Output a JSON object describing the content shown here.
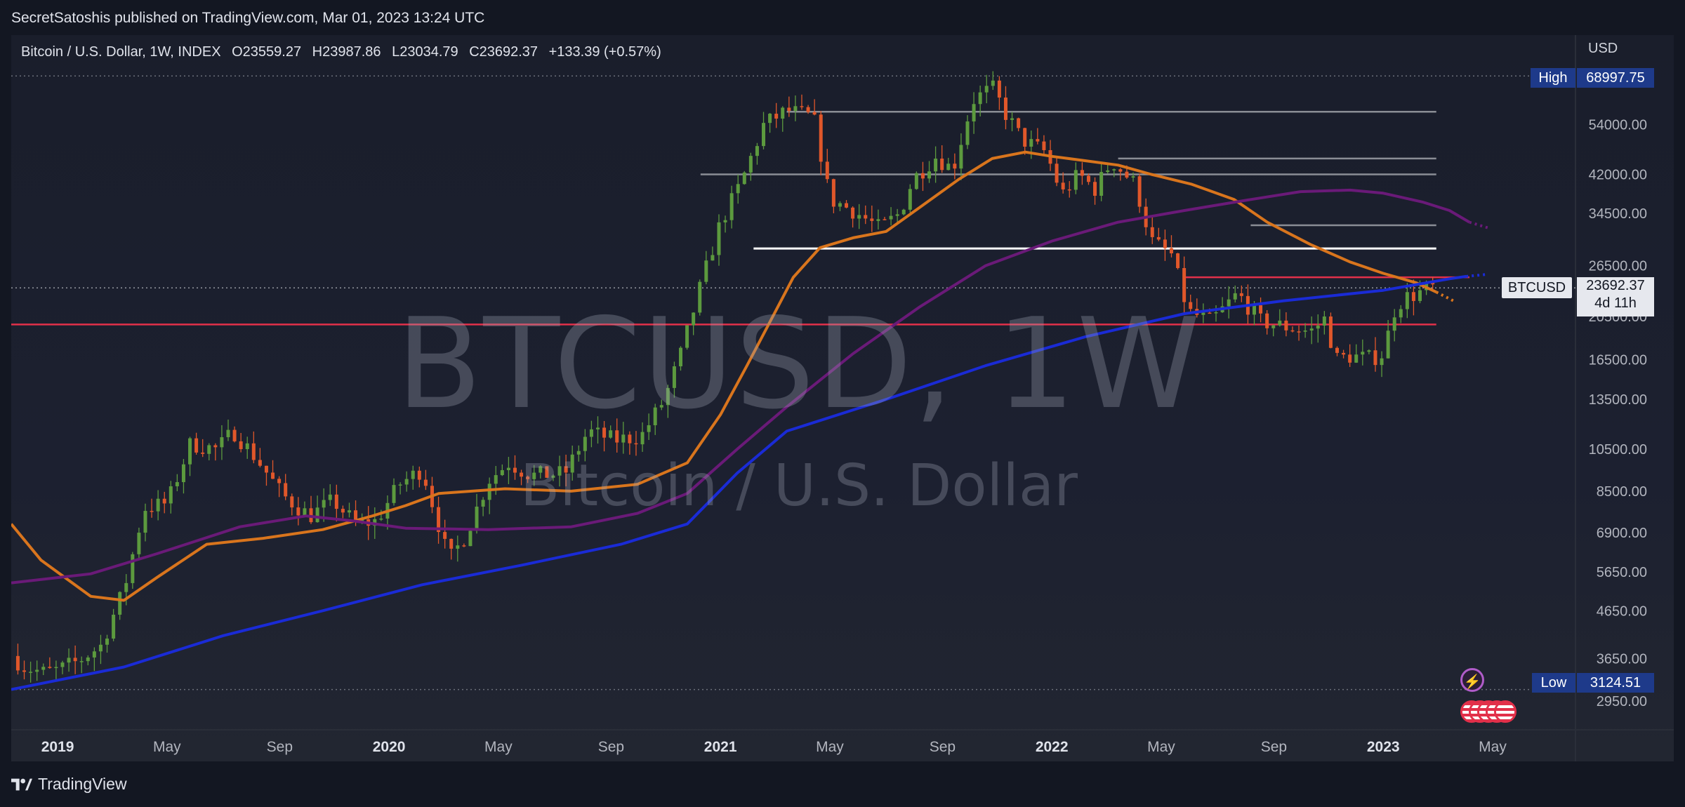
{
  "publish_line": "SecretSatoshis published on TradingView.com, Mar 01, 2023 13:24 UTC",
  "legend": {
    "symbol": "Bitcoin / U.S. Dollar, 1W, INDEX",
    "open": "O23559.27",
    "high": "H23987.86",
    "low": "L23034.79",
    "close": "C23692.37",
    "change": "+133.39 (+0.57%)"
  },
  "watermark": {
    "title": "BTCUSD, 1W",
    "subtitle": "Bitcoin / U.S. Dollar"
  },
  "currency": "USD",
  "high_marker": {
    "label": "High",
    "value": "68997.75"
  },
  "low_marker": {
    "label": "Low",
    "value": "3124.51"
  },
  "last_price": {
    "symbol": "BTCUSD",
    "value": "23692.37",
    "countdown": "4d 11h"
  },
  "footer": {
    "brand": "TradingView"
  },
  "icons": {
    "events": "lightning-icon",
    "economic": "us-flag-icon",
    "logo": "tradingview-logo-icon"
  },
  "colors": {
    "background": "#131722",
    "up": "#5c9a3e",
    "down": "#e0572a",
    "ma_orange": "#d9751d",
    "ma_purple": "#6a1a78",
    "ma_blue": "#1a2bd6",
    "level_white": "#ffffff",
    "level_gray": "#8a8d95",
    "level_red": "#e2304a"
  },
  "chart_data": {
    "type": "line",
    "scale": "log",
    "ylim": [
      2550,
      79000
    ],
    "y_ticks": [
      "54000.00",
      "42000.00",
      "34500.00",
      "26500.00",
      "20500.00",
      "16500.00",
      "13500.00",
      "10500.00",
      "8500.00",
      "6900.00",
      "5650.00",
      "4650.00",
      "3650.00",
      "2950.00"
    ],
    "x_ticks": [
      {
        "label": "2019",
        "t": 0.0,
        "bold": true
      },
      {
        "label": "May",
        "t": 0.33,
        "bold": false
      },
      {
        "label": "Sep",
        "t": 0.67,
        "bold": false
      },
      {
        "label": "2020",
        "t": 1.0,
        "bold": true
      },
      {
        "label": "May",
        "t": 1.33,
        "bold": false
      },
      {
        "label": "Sep",
        "t": 1.67,
        "bold": false
      },
      {
        "label": "2021",
        "t": 2.0,
        "bold": true
      },
      {
        "label": "May",
        "t": 2.33,
        "bold": false
      },
      {
        "label": "Sep",
        "t": 2.67,
        "bold": false
      },
      {
        "label": "2022",
        "t": 3.0,
        "bold": true
      },
      {
        "label": "May",
        "t": 3.33,
        "bold": false
      },
      {
        "label": "Sep",
        "t": 3.67,
        "bold": false
      },
      {
        "label": "2023",
        "t": 4.0,
        "bold": true
      },
      {
        "label": "May",
        "t": 4.33,
        "bold": false
      }
    ],
    "x_range_years": [
      -0.14,
      4.58
    ],
    "price_path": [
      [
        -0.12,
        3700
      ],
      [
        -0.08,
        3500
      ],
      [
        -0.02,
        3400
      ],
      [
        0.02,
        3450
      ],
      [
        0.08,
        3600
      ],
      [
        0.15,
        3900
      ],
      [
        0.22,
        5200
      ],
      [
        0.28,
        7800
      ],
      [
        0.35,
        8000
      ],
      [
        0.42,
        10800
      ],
      [
        0.5,
        10500
      ],
      [
        0.55,
        11500
      ],
      [
        0.62,
        10000
      ],
      [
        0.7,
        8300
      ],
      [
        0.78,
        7500
      ],
      [
        0.85,
        8100
      ],
      [
        0.92,
        7200
      ],
      [
        0.98,
        7300
      ],
      [
        1.05,
        8800
      ],
      [
        1.12,
        9500
      ],
      [
        1.2,
        6000
      ],
      [
        1.25,
        6800
      ],
      [
        1.32,
        9000
      ],
      [
        1.38,
        9800
      ],
      [
        1.45,
        9200
      ],
      [
        1.55,
        9300
      ],
      [
        1.62,
        11500
      ],
      [
        1.7,
        11000
      ],
      [
        1.78,
        11200
      ],
      [
        1.85,
        13500
      ],
      [
        1.9,
        17000
      ],
      [
        1.96,
        24000
      ],
      [
        2.02,
        33000
      ],
      [
        2.08,
        40000
      ],
      [
        2.15,
        54000
      ],
      [
        2.22,
        58000
      ],
      [
        2.3,
        56000
      ],
      [
        2.35,
        37000
      ],
      [
        2.42,
        35000
      ],
      [
        2.5,
        32000
      ],
      [
        2.56,
        34500
      ],
      [
        2.6,
        41000
      ],
      [
        2.67,
        46000
      ],
      [
        2.72,
        43000
      ],
      [
        2.78,
        61000
      ],
      [
        2.84,
        65000
      ],
      [
        2.88,
        57000
      ],
      [
        2.93,
        50000
      ],
      [
        3.0,
        47000
      ],
      [
        3.05,
        38000
      ],
      [
        3.1,
        42000
      ],
      [
        3.15,
        39000
      ],
      [
        3.2,
        45000
      ],
      [
        3.27,
        40000
      ],
      [
        3.32,
        30000
      ],
      [
        3.38,
        28000
      ],
      [
        3.43,
        21000
      ],
      [
        3.5,
        20000
      ],
      [
        3.58,
        23000
      ],
      [
        3.65,
        20000
      ],
      [
        3.72,
        19500
      ],
      [
        3.8,
        19000
      ],
      [
        3.85,
        20500
      ],
      [
        3.87,
        16500
      ],
      [
        3.92,
        16800
      ],
      [
        3.98,
        16600
      ],
      [
        4.02,
        17000
      ],
      [
        4.05,
        21000
      ],
      [
        4.08,
        22500
      ],
      [
        4.12,
        23000
      ],
      [
        4.16,
        23692.37
      ]
    ],
    "series": [
      {
        "name": "",
        "color": "#d9751d",
        "values": [
          [
            -0.14,
            7200
          ],
          [
            -0.05,
            6000
          ],
          [
            0.1,
            5000
          ],
          [
            0.2,
            4900
          ],
          [
            0.3,
            5500
          ],
          [
            0.45,
            6500
          ],
          [
            0.62,
            6700
          ],
          [
            0.8,
            7000
          ],
          [
            0.95,
            7500
          ],
          [
            1.05,
            7900
          ],
          [
            1.15,
            8400
          ],
          [
            1.35,
            8600
          ],
          [
            1.55,
            8500
          ],
          [
            1.75,
            8800
          ],
          [
            1.9,
            9800
          ],
          [
            2.0,
            12500
          ],
          [
            2.08,
            16000
          ],
          [
            2.15,
            20000
          ],
          [
            2.22,
            25000
          ],
          [
            2.3,
            29000
          ],
          [
            2.4,
            30500
          ],
          [
            2.5,
            31500
          ],
          [
            2.6,
            35500
          ],
          [
            2.72,
            41000
          ],
          [
            2.82,
            45500
          ],
          [
            2.92,
            47000
          ],
          [
            3.0,
            46000
          ],
          [
            3.1,
            45000
          ],
          [
            3.2,
            44000
          ],
          [
            3.3,
            42000
          ],
          [
            3.42,
            40000
          ],
          [
            3.55,
            37000
          ],
          [
            3.65,
            33000
          ],
          [
            3.78,
            29500
          ],
          [
            3.9,
            27000
          ],
          [
            4.0,
            25500
          ],
          [
            4.1,
            24300
          ],
          [
            4.16,
            23200
          ]
        ]
      },
      {
        "name": "",
        "color": "#6a1a78",
        "values": [
          [
            -0.14,
            5350
          ],
          [
            0.1,
            5600
          ],
          [
            0.3,
            6200
          ],
          [
            0.55,
            7100
          ],
          [
            0.75,
            7500
          ],
          [
            0.9,
            7300
          ],
          [
            1.05,
            7050
          ],
          [
            1.3,
            7000
          ],
          [
            1.55,
            7100
          ],
          [
            1.75,
            7600
          ],
          [
            1.9,
            8400
          ],
          [
            2.05,
            10500
          ],
          [
            2.2,
            13000
          ],
          [
            2.4,
            17000
          ],
          [
            2.6,
            21500
          ],
          [
            2.8,
            26500
          ],
          [
            3.0,
            30000
          ],
          [
            3.2,
            33000
          ],
          [
            3.4,
            35000
          ],
          [
            3.6,
            37000
          ],
          [
            3.75,
            38500
          ],
          [
            3.9,
            38800
          ],
          [
            4.0,
            38200
          ],
          [
            4.12,
            36500
          ],
          [
            4.2,
            35000
          ],
          [
            4.26,
            33000
          ]
        ]
      },
      {
        "name": "",
        "color": "#1a2bd6",
        "values": [
          [
            -0.14,
            3124
          ],
          [
            0.2,
            3500
          ],
          [
            0.5,
            4100
          ],
          [
            0.8,
            4650
          ],
          [
            1.1,
            5300
          ],
          [
            1.4,
            5850
          ],
          [
            1.7,
            6500
          ],
          [
            1.9,
            7200
          ],
          [
            2.05,
            9300
          ],
          [
            2.2,
            11500
          ],
          [
            2.5,
            13500
          ],
          [
            2.8,
            16000
          ],
          [
            3.1,
            18500
          ],
          [
            3.4,
            20800
          ],
          [
            3.7,
            22200
          ],
          [
            4.0,
            23400
          ],
          [
            4.2,
            24800
          ],
          [
            4.25,
            25100
          ]
        ]
      }
    ],
    "levels": [
      {
        "price": 57600,
        "x0": 2.2,
        "x1": 4.16,
        "color": "#8a8d95"
      },
      {
        "price": 45500,
        "x0": 3.2,
        "x1": 4.16,
        "color": "#8a8d95"
      },
      {
        "price": 42000,
        "x0": 1.94,
        "x1": 4.16,
        "color": "#8a8d95"
      },
      {
        "price": 32500,
        "x0": 3.6,
        "x1": 4.16,
        "color": "#8a8d95"
      },
      {
        "price": 28900,
        "x0": 2.1,
        "x1": 4.16,
        "color": "#ffffff"
      },
      {
        "price": 25000,
        "x0": 3.4,
        "x1": 4.26,
        "color": "#e2304a"
      },
      {
        "price": 19700,
        "x0": -0.14,
        "x1": 4.16,
        "color": "#e2304a"
      }
    ]
  }
}
